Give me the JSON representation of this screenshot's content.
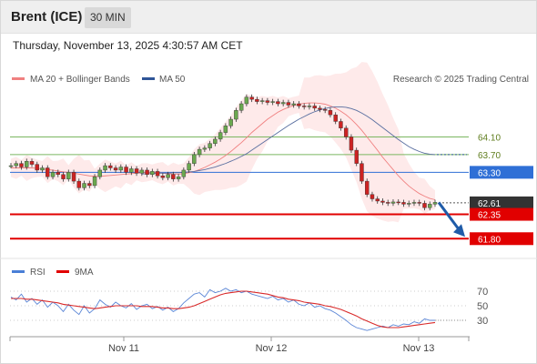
{
  "header": {
    "title": "Brent (ICE)",
    "timeframe": "30 MIN"
  },
  "timestamp": "Thursday, November 13, 2025 4:30:57 AM CET",
  "legend": {
    "ma20_label": "MA 20 + Bollinger Bands",
    "ma50_label": "MA 50",
    "credit": "Research © 2025 Trading Central"
  },
  "rsi_legend": {
    "rsi_label": "RSI",
    "ma_label": "9MA"
  },
  "colors": {
    "ma20": "#f08080",
    "ma50": "#2f5597",
    "support": "#e10000",
    "resistance": "#7bb661",
    "pivot": "#2f6fd6",
    "band": "#fde3e3",
    "arrow": "#1f5ba8"
  },
  "chart_data": [
    {
      "type": "line",
      "title": "Brent (ICE)",
      "timeframe": "30 MIN",
      "x_labels": [
        "Nov 11",
        "Nov 12",
        "Nov 13"
      ],
      "ylim": [
        61.6,
        65.2
      ],
      "series": [
        {
          "name": "Brent (ICE)",
          "values": [
            63.45,
            63.5,
            63.42,
            63.55,
            63.48,
            63.35,
            63.4,
            63.2,
            63.3,
            63.25,
            63.15,
            63.3,
            63.1,
            62.95,
            63.05,
            63.0,
            63.2,
            63.35,
            63.45,
            63.4,
            63.35,
            63.42,
            63.3,
            63.38,
            63.28,
            63.35,
            63.25,
            63.32,
            63.22,
            63.18,
            63.25,
            63.15,
            63.2,
            63.35,
            63.5,
            63.7,
            63.82,
            63.85,
            63.95,
            64.05,
            64.2,
            64.35,
            64.5,
            64.7,
            64.85,
            65.0,
            64.95,
            64.9,
            64.92,
            64.88,
            64.9,
            64.85,
            64.88,
            64.82,
            64.85,
            64.8,
            64.78,
            64.8,
            64.75,
            64.72,
            64.7,
            64.6,
            64.45,
            64.3,
            64.1,
            63.8,
            63.5,
            63.1,
            62.8,
            62.7,
            62.65,
            62.62,
            62.6,
            62.63,
            62.62,
            62.58,
            62.6,
            62.62,
            62.6,
            62.5,
            62.58,
            62.62
          ]
        },
        {
          "name": "MA 20",
          "values": [
            63.4,
            63.4,
            63.4,
            63.4,
            63.4,
            63.39,
            63.38,
            63.36,
            63.35,
            63.33,
            63.31,
            63.3,
            63.28,
            63.26,
            63.24,
            63.22,
            63.21,
            63.21,
            63.22,
            63.23,
            63.24,
            63.25,
            63.26,
            63.27,
            63.28,
            63.29,
            63.3,
            63.3,
            63.29,
            63.28,
            63.27,
            63.26,
            63.26,
            63.27,
            63.29,
            63.32,
            63.36,
            63.41,
            63.47,
            63.53,
            63.6,
            63.68,
            63.77,
            63.87,
            63.97,
            64.08,
            64.2,
            64.3,
            64.4,
            64.5,
            64.58,
            64.66,
            64.72,
            64.77,
            64.81,
            64.84,
            64.86,
            64.87,
            64.87,
            64.86,
            64.84,
            64.8,
            64.75,
            64.68,
            64.6,
            64.5,
            64.38,
            64.25,
            64.1,
            63.95,
            63.8,
            63.64,
            63.5,
            63.36,
            63.22,
            63.1,
            62.99,
            62.9,
            62.82,
            62.76,
            62.71,
            62.68
          ]
        },
        {
          "name": "MA 50",
          "values": [
            null,
            null,
            null,
            null,
            null,
            null,
            null,
            null,
            null,
            null,
            null,
            null,
            null,
            null,
            null,
            null,
            null,
            null,
            null,
            null,
            null,
            null,
            null,
            null,
            null,
            63.26,
            63.27,
            63.27,
            63.28,
            63.28,
            63.28,
            63.29,
            63.29,
            63.3,
            63.31,
            63.32,
            63.34,
            63.36,
            63.39,
            63.42,
            63.46,
            63.5,
            63.55,
            63.6,
            63.66,
            63.72,
            63.8,
            63.88,
            63.96,
            64.04,
            64.12,
            64.2,
            64.28,
            64.36,
            64.43,
            64.5,
            64.56,
            64.62,
            64.67,
            64.71,
            64.74,
            64.77,
            64.78,
            64.78,
            64.77,
            64.74,
            64.7,
            64.64,
            64.57,
            64.49,
            64.4,
            64.31,
            64.22,
            64.13,
            64.04,
            63.96,
            63.88,
            63.82,
            63.77,
            63.73,
            63.71,
            63.7
          ]
        }
      ],
      "levels": [
        {
          "value": 64.1,
          "label": "64.10",
          "kind": "resistance"
        },
        {
          "value": 63.7,
          "label": "63.70",
          "kind": "resistance"
        },
        {
          "value": 63.3,
          "label": "63.30",
          "kind": "pivot"
        },
        {
          "value": 62.61,
          "label": "62.61",
          "kind": "last"
        },
        {
          "value": 62.35,
          "label": "62.35",
          "kind": "support"
        },
        {
          "value": 61.8,
          "label": "61.80",
          "kind": "support"
        }
      ],
      "legend": [
        "MA 20 + Bollinger Bands",
        "MA 50"
      ],
      "grid": false
    },
    {
      "type": "line",
      "title": "",
      "ylim": [
        0,
        100
      ],
      "y_ticks": [
        70,
        50,
        30
      ],
      "x_labels": [
        "Nov 11",
        "Nov 12",
        "Nov 13"
      ],
      "series": [
        {
          "name": "RSI",
          "values": [
            62,
            58,
            66,
            55,
            60,
            52,
            58,
            48,
            55,
            50,
            42,
            52,
            44,
            38,
            50,
            40,
            46,
            58,
            52,
            48,
            55,
            50,
            47,
            53,
            45,
            50,
            52,
            46,
            49,
            44,
            48,
            42,
            46,
            54,
            60,
            66,
            68,
            62,
            72,
            68,
            70,
            74,
            70,
            72,
            68,
            70,
            66,
            64,
            62,
            60,
            63,
            58,
            60,
            55,
            58,
            52,
            50,
            54,
            48,
            50,
            46,
            44,
            40,
            35,
            30,
            24,
            20,
            18,
            16,
            18,
            20,
            22,
            20,
            24,
            22,
            25,
            24,
            28,
            26,
            32,
            30,
            30
          ]
        },
        {
          "name": "9MA",
          "values": [
            60,
            60,
            60,
            59,
            59,
            58,
            57,
            56,
            55,
            54,
            52,
            51,
            50,
            49,
            48,
            47,
            46,
            47,
            48,
            49,
            50,
            50,
            50,
            50,
            50,
            49,
            49,
            49,
            48,
            47,
            47,
            46,
            46,
            47,
            48,
            50,
            53,
            56,
            59,
            62,
            65,
            67,
            68,
            69,
            70,
            70,
            69,
            68,
            67,
            66,
            64,
            62,
            61,
            59,
            58,
            57,
            55,
            54,
            53,
            52,
            50,
            49,
            47,
            45,
            42,
            39,
            36,
            32,
            29,
            26,
            23,
            21,
            20,
            20,
            20,
            21,
            22,
            23,
            24,
            25,
            26,
            27
          ]
        }
      ],
      "legend": [
        "RSI",
        "9MA"
      ]
    }
  ]
}
